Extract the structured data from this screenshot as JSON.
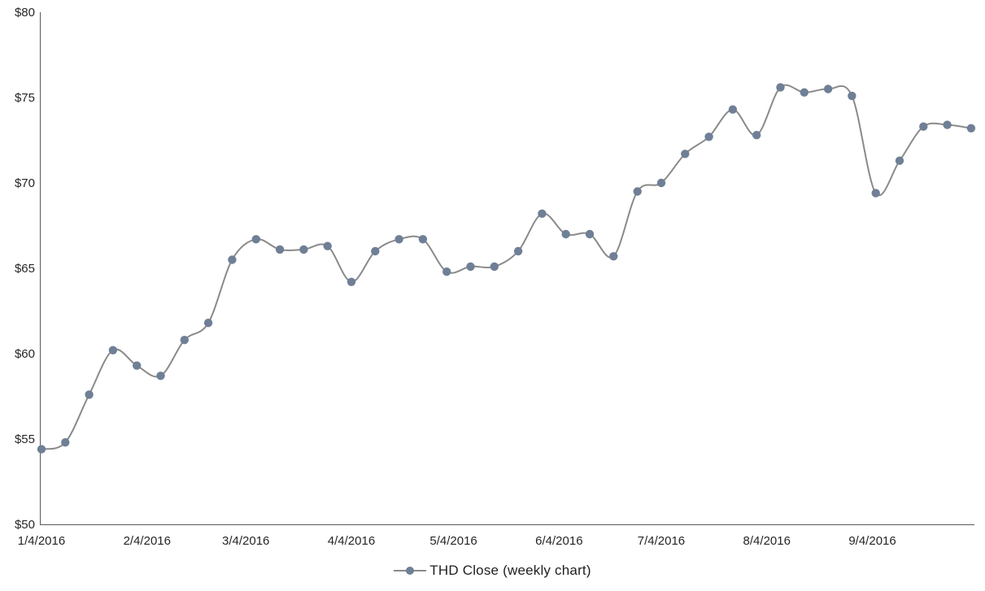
{
  "chart_data": {
    "type": "line",
    "title": "",
    "xlabel": "",
    "ylabel": "",
    "grid": false,
    "smoothed": true,
    "legend_position": "bottom-center",
    "y_min": 50,
    "y_max": 80,
    "y_tick_labels": [
      "$50",
      "$55",
      "$60",
      "$65",
      "$70",
      "$75",
      "$80"
    ],
    "x_tick_labels": [
      "1/4/2016",
      "2/4/2016",
      "3/4/2016",
      "4/4/2016",
      "5/4/2016",
      "6/4/2016",
      "7/4/2016",
      "8/4/2016",
      "9/4/2016"
    ],
    "series": [
      {
        "name": "THD Close (weekly chart)",
        "x": [
          "1/4/2016",
          "1/11/2016",
          "1/18/2016",
          "1/25/2016",
          "2/1/2016",
          "2/8/2016",
          "2/15/2016",
          "2/22/2016",
          "2/29/2016",
          "3/7/2016",
          "3/14/2016",
          "3/21/2016",
          "3/28/2016",
          "4/4/2016",
          "4/11/2016",
          "4/18/2016",
          "4/25/2016",
          "5/2/2016",
          "5/9/2016",
          "5/16/2016",
          "5/23/2016",
          "5/30/2016",
          "6/6/2016",
          "6/13/2016",
          "6/20/2016",
          "6/27/2016",
          "7/4/2016",
          "7/11/2016",
          "7/18/2016",
          "7/25/2016",
          "8/1/2016",
          "8/8/2016",
          "8/15/2016",
          "8/22/2016",
          "8/29/2016",
          "9/5/2016",
          "9/12/2016",
          "9/19/2016",
          "9/26/2016",
          "10/3/2016"
        ],
        "values": [
          54.4,
          54.8,
          57.6,
          60.2,
          59.3,
          58.7,
          60.8,
          61.8,
          65.5,
          66.7,
          66.1,
          66.1,
          66.3,
          64.2,
          66.0,
          66.7,
          66.7,
          64.8,
          65.1,
          65.1,
          66.0,
          68.2,
          67.0,
          67.0,
          65.7,
          69.5,
          70.0,
          71.7,
          72.7,
          74.3,
          72.8,
          75.6,
          75.3,
          75.5,
          75.1,
          69.4,
          71.3,
          73.3,
          73.4,
          73.2
        ]
      }
    ],
    "colors": {
      "line": "#8A8A8A",
      "marker": "#6F7F96",
      "axis": "#595959",
      "tick_text": "#262626",
      "legend_text": "#1F1F1F",
      "background": "#FFFFFF"
    }
  }
}
